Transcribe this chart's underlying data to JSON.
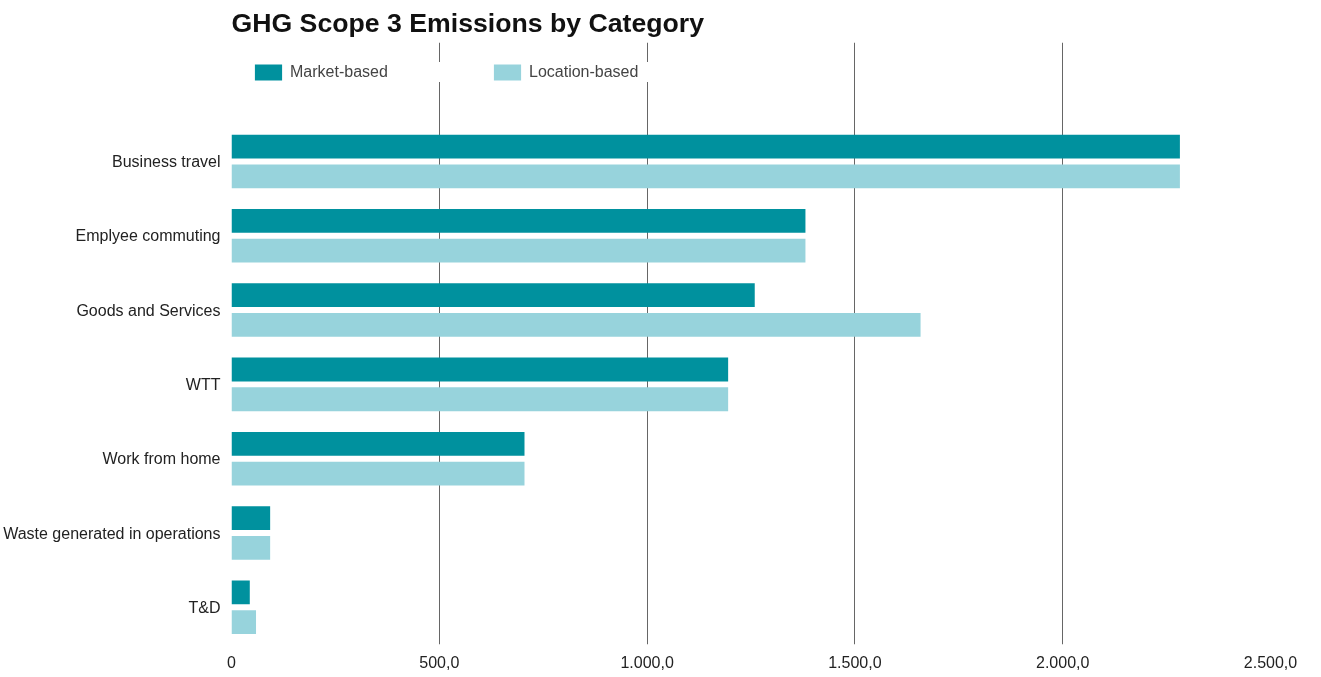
{
  "chart_data": {
    "type": "bar",
    "orientation": "horizontal",
    "title": "GHG Scope 3 Emissions by Category",
    "categories": [
      "Business travel",
      "Emplyee commuting",
      "Goods and Services",
      "WTT",
      "Work from home",
      "Waste generated in operations",
      "T&D"
    ],
    "series": [
      {
        "name": "Market-based",
        "color": "#00919e",
        "values": [
          2282,
          1381,
          1259,
          1195,
          705,
          93,
          44
        ]
      },
      {
        "name": "Location-based",
        "color": "#97d3dc",
        "values": [
          2282,
          1381,
          1658,
          1195,
          705,
          93,
          59
        ]
      }
    ],
    "xlim": [
      0,
      2500
    ],
    "xticks": [
      0,
      {
        "value": 500,
        "label": "500,0"
      },
      {
        "value": 1000,
        "label": "1.000,0"
      },
      {
        "value": 1500,
        "label": "1.500,0"
      },
      {
        "value": 2000,
        "label": "2.000,0"
      },
      {
        "value": 2500,
        "label": "2.500,0"
      }
    ],
    "grid": "x",
    "legend": "top left"
  }
}
